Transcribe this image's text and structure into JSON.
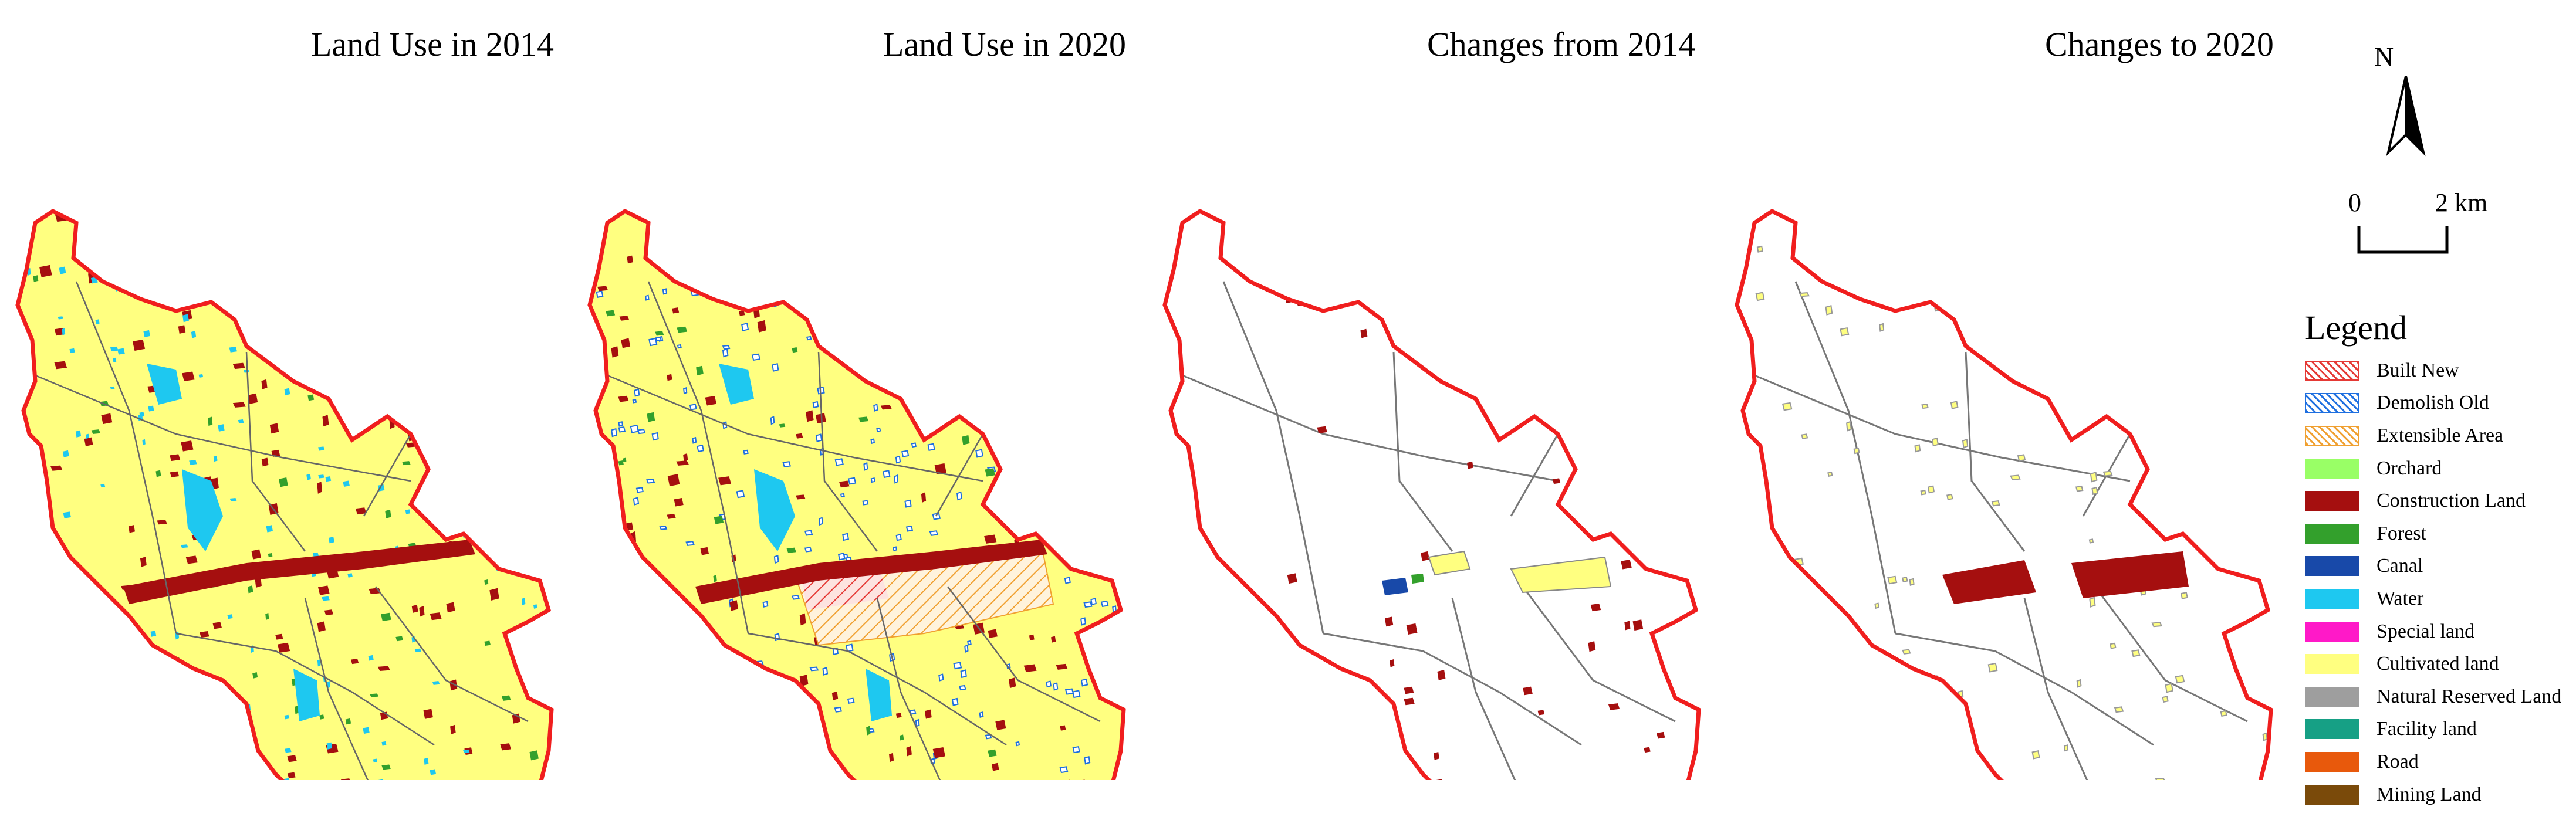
{
  "panels": [
    {
      "title": "Land Use in 2014"
    },
    {
      "title": "Land Use in 2020"
    },
    {
      "title": "Changes from 2014"
    },
    {
      "title": "Changes to 2020"
    }
  ],
  "north_arrow": {
    "letter": "N"
  },
  "scale_bar": {
    "start": "0",
    "end": "2 km"
  },
  "legend": {
    "title": "Legend",
    "items": [
      {
        "label": "Built New",
        "color": "#e53935",
        "pattern": "hatch"
      },
      {
        "label": "Demolish Old",
        "color": "#1e6fe0",
        "pattern": "hatch"
      },
      {
        "label": "Extensible Area",
        "color": "#f0a030",
        "pattern": "hatch"
      },
      {
        "label": "Orchard",
        "color": "#99ff66"
      },
      {
        "label": "Construction Land",
        "color": "#a50f0f"
      },
      {
        "label": "Forest",
        "color": "#33a02c"
      },
      {
        "label": "Canal",
        "color": "#1849a9"
      },
      {
        "label": "Water",
        "color": "#1ec8f0"
      },
      {
        "label": "Special land",
        "color": "#ff19c8"
      },
      {
        "label": "Cultivated land",
        "color": "#ffff80"
      },
      {
        "label": "Natural Reserved Land",
        "color": "#9e9e9e"
      },
      {
        "label": "Facility land",
        "color": "#16a085"
      },
      {
        "label": "Road",
        "color": "#e8590c"
      },
      {
        "label": "Mining Land",
        "color": "#7a4a0a"
      }
    ]
  },
  "colors": {
    "boundary": "#f01e1e",
    "internal_boundary": "#777777",
    "cultivated": "#ffff80",
    "construction": "#a50f0f",
    "water": "#1ec8f0",
    "forest": "#33a02c",
    "demolish": "#1e6fe0"
  }
}
